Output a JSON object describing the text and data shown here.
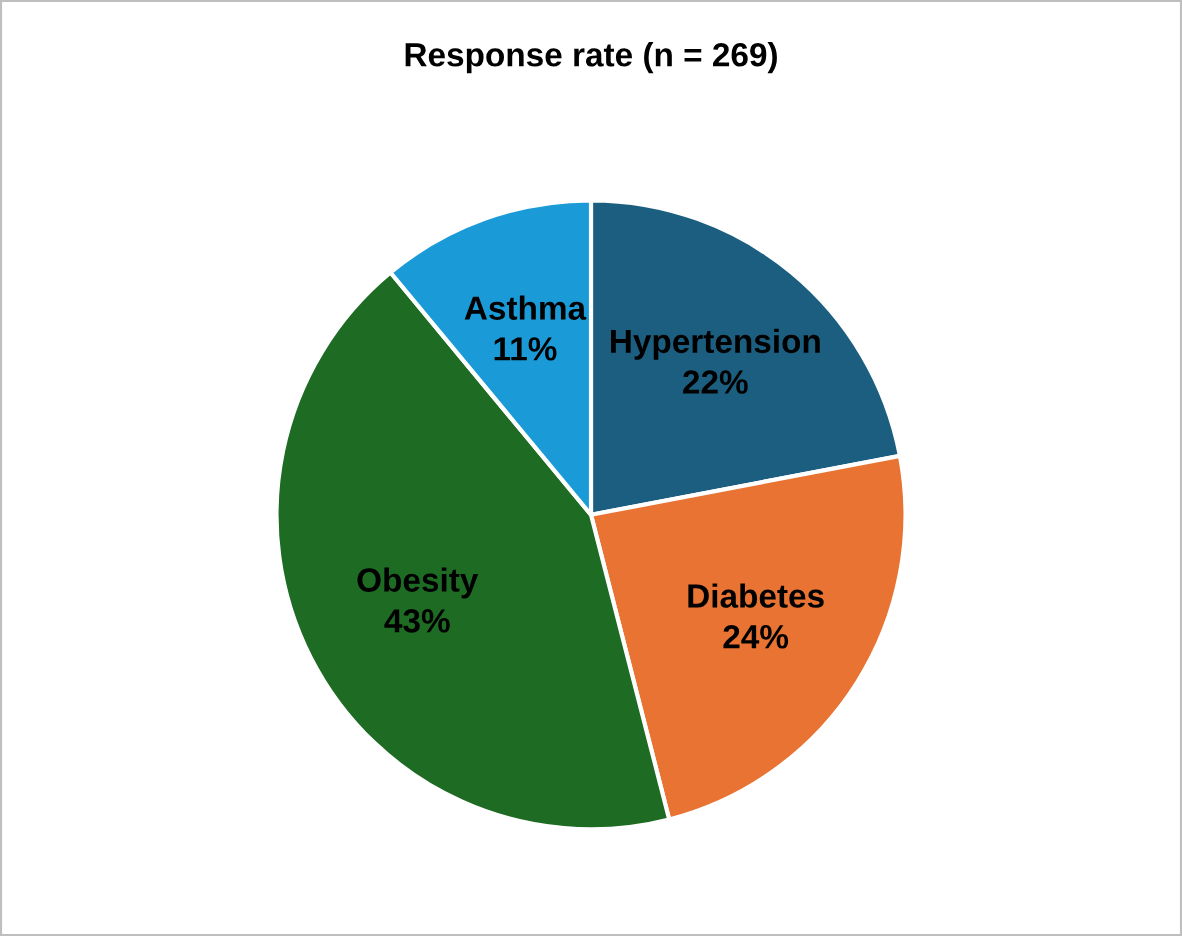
{
  "chart_data": {
    "type": "pie",
    "title": "Response rate (n = 269)",
    "categories": [
      "Hypertension",
      "Diabetes",
      "Obesity",
      "Asthma"
    ],
    "values": [
      22,
      24,
      43,
      11
    ],
    "value_labels": [
      "22%",
      "24%",
      "43%",
      "11%"
    ],
    "colors": [
      "#1b5e80",
      "#e87332",
      "#1e6b23",
      "#1a9bd7"
    ],
    "legend": false
  }
}
